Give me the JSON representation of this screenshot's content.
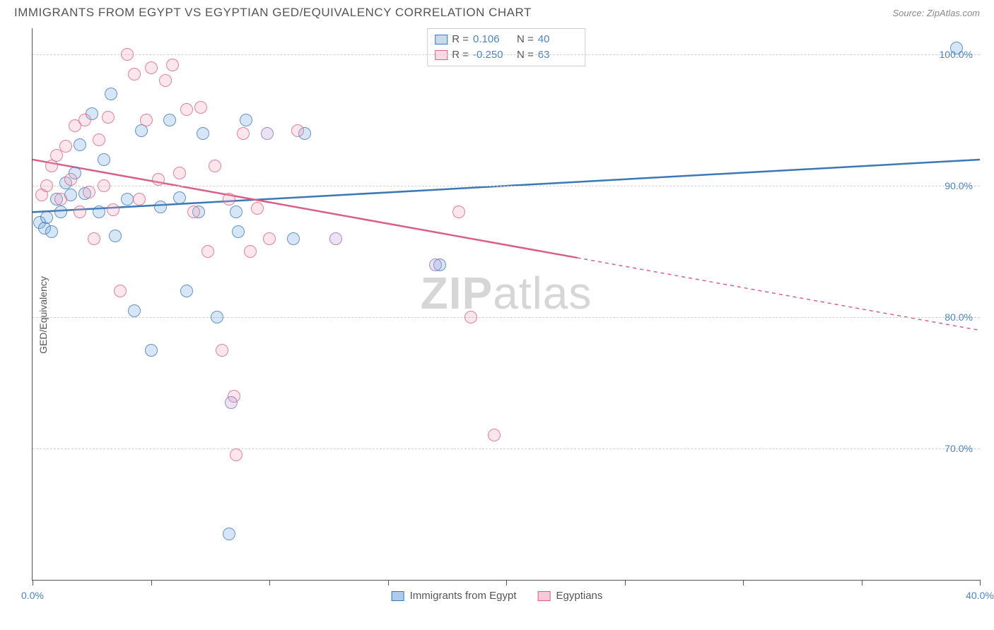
{
  "title": "IMMIGRANTS FROM EGYPT VS EGYPTIAN GED/EQUIVALENCY CORRELATION CHART",
  "source": "Source: ZipAtlas.com",
  "watermark_bold": "ZIP",
  "watermark_rest": "atlas",
  "ylabel": "GED/Equivalency",
  "xlim": [
    0,
    40
  ],
  "ylim": [
    60,
    102
  ],
  "xticks": [
    0,
    5,
    10,
    15,
    20,
    25,
    30,
    35,
    40
  ],
  "xtick_labels": [
    "0.0%",
    "",
    "",
    "",
    "",
    "",
    "",
    "",
    "40.0%"
  ],
  "yticks": [
    70,
    80,
    90,
    100
  ],
  "ytick_labels": [
    "70.0%",
    "80.0%",
    "90.0%",
    "100.0%"
  ],
  "grid_color": "#d0d0d0",
  "axis_color": "#555555",
  "tick_label_color": "#4a84c4",
  "background_color": "#ffffff",
  "marker_radius": 9,
  "marker_fill_opacity": 0.28,
  "marker_stroke_opacity": 0.75,
  "series": [
    {
      "name": "Immigrants from Egypt",
      "color": "#6fa4dd",
      "stroke": "#3b78b5",
      "legend_R": "0.106",
      "legend_N": "40",
      "trend": {
        "x1": 0,
        "y1": 88.0,
        "x2": 40,
        "y2": 92.0,
        "solid_until_x": 40
      },
      "points": [
        [
          0.3,
          87.2
        ],
        [
          0.5,
          86.8
        ],
        [
          0.6,
          87.6
        ],
        [
          0.8,
          86.5
        ],
        [
          1.0,
          89.0
        ],
        [
          1.2,
          88.0
        ],
        [
          1.4,
          90.2
        ],
        [
          1.6,
          89.3
        ],
        [
          1.8,
          91.0
        ],
        [
          2.0,
          93.1
        ],
        [
          2.2,
          89.4
        ],
        [
          2.5,
          95.5
        ],
        [
          2.8,
          88.0
        ],
        [
          3.0,
          92.0
        ],
        [
          3.3,
          97.0
        ],
        [
          3.5,
          86.2
        ],
        [
          4.0,
          89.0
        ],
        [
          4.3,
          80.5
        ],
        [
          4.6,
          94.2
        ],
        [
          5.0,
          77.5
        ],
        [
          5.4,
          88.4
        ],
        [
          5.8,
          95.0
        ],
        [
          6.2,
          89.1
        ],
        [
          6.5,
          82.0
        ],
        [
          7.0,
          88.0
        ],
        [
          7.2,
          94.0
        ],
        [
          7.8,
          80.0
        ],
        [
          8.3,
          63.5
        ],
        [
          8.6,
          88.0
        ],
        [
          8.7,
          86.5
        ],
        [
          9.0,
          95.0
        ],
        [
          11.0,
          86.0
        ],
        [
          11.5,
          94.0
        ],
        [
          17.2,
          84.0
        ],
        [
          39.0,
          100.5
        ]
      ]
    },
    {
      "name": "Egyptians",
      "color": "#f2a6bb",
      "stroke": "#d95f87",
      "legend_R": "-0.250",
      "legend_N": "63",
      "trend": {
        "x1": 0,
        "y1": 92.0,
        "x2": 40,
        "y2": 79.0,
        "solid_until_x": 23
      },
      "points": [
        [
          0.4,
          89.3
        ],
        [
          0.6,
          90.0
        ],
        [
          0.8,
          91.5
        ],
        [
          1.0,
          92.3
        ],
        [
          1.2,
          89.0
        ],
        [
          1.4,
          93.0
        ],
        [
          1.6,
          90.5
        ],
        [
          1.8,
          94.6
        ],
        [
          2.0,
          88.0
        ],
        [
          2.2,
          95.0
        ],
        [
          2.4,
          89.5
        ],
        [
          2.6,
          86.0
        ],
        [
          2.8,
          93.5
        ],
        [
          3.0,
          90.0
        ],
        [
          3.2,
          95.2
        ],
        [
          3.4,
          88.2
        ],
        [
          3.7,
          82.0
        ],
        [
          4.0,
          100.0
        ],
        [
          4.3,
          98.5
        ],
        [
          4.5,
          89.0
        ],
        [
          4.8,
          95.0
        ],
        [
          5.0,
          99.0
        ],
        [
          5.3,
          90.5
        ],
        [
          5.6,
          98.0
        ],
        [
          5.9,
          99.2
        ],
        [
          6.2,
          91.0
        ],
        [
          6.5,
          95.8
        ],
        [
          6.8,
          88.0
        ],
        [
          7.1,
          96.0
        ],
        [
          7.4,
          85.0
        ],
        [
          7.7,
          91.5
        ],
        [
          8.0,
          77.5
        ],
        [
          8.3,
          89.0
        ],
        [
          8.5,
          74.0
        ],
        [
          8.6,
          69.5
        ],
        [
          8.9,
          94.0
        ],
        [
          9.2,
          85.0
        ],
        [
          9.5,
          88.3
        ],
        [
          10.0,
          86.0
        ],
        [
          11.2,
          94.2
        ],
        [
          18.0,
          88.0
        ],
        [
          18.5,
          80.0
        ],
        [
          19.5,
          71.0
        ]
      ]
    },
    {
      "name": "overlap",
      "color": "#b89ad6",
      "stroke": "#8a6fb5",
      "points": [
        [
          8.4,
          73.5
        ],
        [
          9.9,
          94.0
        ],
        [
          12.8,
          86.0
        ],
        [
          17.0,
          84.0
        ]
      ]
    }
  ],
  "legend_bottom": [
    {
      "label": "Immigrants from Egypt",
      "fill": "#aecbec",
      "stroke": "#3b78b5"
    },
    {
      "label": "Egyptians",
      "fill": "#f8c9d6",
      "stroke": "#d95f87"
    }
  ]
}
